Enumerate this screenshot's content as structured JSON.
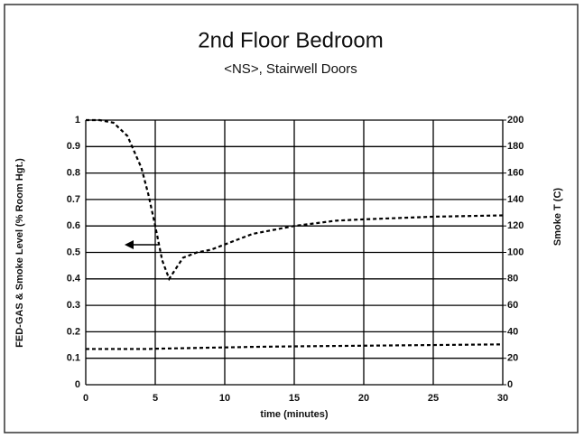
{
  "chart_data": {
    "type": "line",
    "title": "2nd Floor Bedroom",
    "subtitle": "<NS>, Stairwell Doors",
    "xlabel": "time (minutes)",
    "ylabel": "FED-GAS & Smoke Level (% Room Hgt.)",
    "y2label": "Smoke T (C)",
    "x": [
      0,
      1,
      2,
      3,
      4,
      4.5,
      5,
      5.5,
      6,
      6.5,
      7,
      8,
      9,
      10,
      12,
      15,
      18,
      20,
      25,
      30
    ],
    "series": [
      {
        "color": "#000000",
        "values": [
          1,
          1,
          0.99,
          0.94,
          0.82,
          0.72,
          0.6,
          0.47,
          0.4,
          0.44,
          0.48,
          0.5,
          0.51,
          0.53,
          0.57,
          0.6,
          0.62,
          0.625,
          0.635,
          0.64
        ]
      },
      {
        "color": "#000000",
        "axis": "y2",
        "values": [
          27,
          27,
          27,
          27,
          27,
          27,
          27.2,
          27.3,
          27.4,
          27.5,
          27.6,
          27.8,
          28,
          28.2,
          28.6,
          29,
          29.3,
          29.5,
          30,
          30.5
        ]
      }
    ],
    "xlim": [
      0,
      30
    ],
    "xticks": [
      0,
      5,
      10,
      15,
      20,
      25,
      30
    ],
    "ylim": [
      0,
      1
    ],
    "yticks": [
      0,
      0.1,
      0.2,
      0.3,
      0.4,
      0.5,
      0.6,
      0.7,
      0.8,
      0.9,
      1
    ],
    "y2lim": [
      0,
      200
    ],
    "y2ticks": [
      0,
      20,
      40,
      60,
      80,
      100,
      120,
      140,
      160,
      180,
      200
    ],
    "grid": true
  }
}
